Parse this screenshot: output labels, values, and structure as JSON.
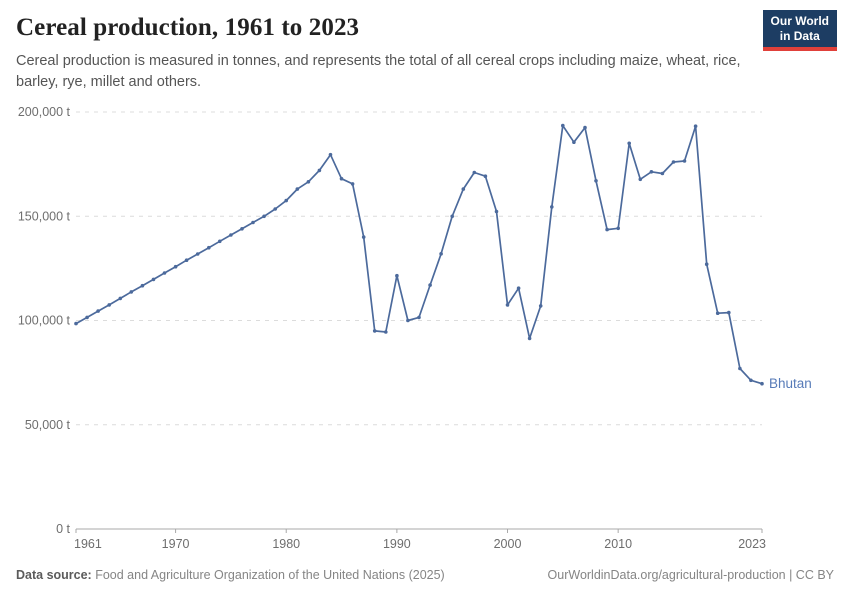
{
  "header": {
    "title": "Cereal production, 1961 to 2023",
    "subtitle": "Cereal production is measured in tonnes, and represents the total of all cereal crops including maize, wheat, rice, barley, rye, millet and others.",
    "logo": {
      "line1": "Our World",
      "line2": "in Data"
    }
  },
  "footer": {
    "source_label": "Data source:",
    "source_text": " Food and Agriculture Organization of the United Nations (2025)",
    "attribution": "OurWorldinData.org/agricultural-production | CC BY"
  },
  "colors": {
    "line": "#4C6A9C",
    "marker": "#4C6A9C",
    "entity_label": "#577BB8",
    "grid": "#DCDCDC",
    "axis": "#A8A8A8",
    "tick_text": "#6E6E6E",
    "logo_bg": "#1D3D63",
    "logo_accent": "#E0403A"
  },
  "chart_data": {
    "type": "line",
    "title": "Cereal production, 1961 to 2023",
    "entity": "Bhutan",
    "unit": "t",
    "ylabel": "",
    "xlabel": "",
    "grid": "horizontal-dashed",
    "legend_position": "end-of-line-label",
    "ylim": [
      0,
      200000
    ],
    "yticks": [
      0,
      50000,
      100000,
      150000,
      200000
    ],
    "ytick_labels": [
      "0 t",
      "50,000 t",
      "100,000 t",
      "150,000 t",
      "200,000 t"
    ],
    "xticks": [
      1961,
      1970,
      1980,
      1990,
      2000,
      2010,
      2023
    ],
    "x": [
      1961,
      1962,
      1963,
      1964,
      1965,
      1966,
      1967,
      1968,
      1969,
      1970,
      1971,
      1972,
      1973,
      1974,
      1975,
      1976,
      1977,
      1978,
      1979,
      1980,
      1981,
      1982,
      1983,
      1984,
      1985,
      1986,
      1987,
      1988,
      1989,
      1990,
      1991,
      1992,
      1993,
      1994,
      1995,
      1996,
      1997,
      1998,
      1999,
      2000,
      2001,
      2002,
      2003,
      2004,
      2005,
      2006,
      2007,
      2008,
      2009,
      2010,
      2011,
      2012,
      2013,
      2014,
      2015,
      2016,
      2017,
      2018,
      2019,
      2020,
      2021,
      2022,
      2023
    ],
    "values": [
      98500,
      101500,
      104500,
      107500,
      110600,
      113700,
      116700,
      119700,
      122800,
      125800,
      128900,
      131900,
      134900,
      138000,
      141000,
      144000,
      147000,
      150000,
      153500,
      157500,
      163000,
      166500,
      172000,
      179500,
      168000,
      165500,
      140000,
      95000,
      94500,
      121500,
      100000,
      101500,
      117000,
      132000,
      150000,
      163000,
      171000,
      169200,
      152300,
      107500,
      115500,
      91400,
      107000,
      154500,
      193500,
      185500,
      192500,
      167000,
      143600,
      144200,
      185000,
      167700,
      171300,
      170500,
      176000,
      176500,
      193200,
      127000,
      103500,
      103800,
      77000,
      71300,
      69700
    ]
  }
}
